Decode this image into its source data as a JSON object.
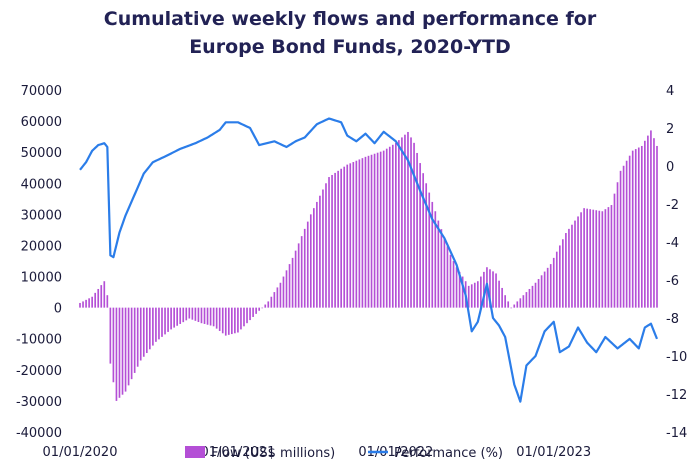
{
  "chart_data": {
    "type": "bar+line",
    "title_line1": "Cumulative weekly flows and performance for",
    "title_line2": "Europe Bond Funds, 2020-YTD",
    "y_left": {
      "ticks": [
        "70000",
        "60000",
        "50000",
        "40000",
        "30000",
        "20000",
        "10000",
        "0",
        "-10000",
        "-20000",
        "-30000",
        "-40000"
      ],
      "range": [
        -40000,
        70000
      ]
    },
    "y_right": {
      "ticks": [
        "4",
        "2",
        "0",
        "-2",
        "-4",
        "-6",
        "-8",
        "-10",
        "-12",
        "-14"
      ],
      "range": [
        -14,
        4
      ]
    },
    "x_ticks": [
      {
        "label": "01/01/2020",
        "week": 0
      },
      {
        "label": "01/01/2021",
        "week": 52
      },
      {
        "label": "01/01/2022",
        "week": 104
      },
      {
        "label": "01/01/2023",
        "week": 156
      }
    ],
    "weeks": 190,
    "colors": {
      "flow": "#b44fd6",
      "performance": "#2b7de9",
      "text": "#1a1a3a",
      "title": "#222255"
    },
    "series": [
      {
        "name": "Flow (US$ millions)",
        "kind": "bar",
        "axis": "left",
        "anchors": [
          [
            0,
            1500
          ],
          [
            4,
            3500
          ],
          [
            8,
            8500
          ],
          [
            9,
            4000
          ],
          [
            10,
            -18000
          ],
          [
            12,
            -30000
          ],
          [
            15,
            -27000
          ],
          [
            20,
            -17000
          ],
          [
            25,
            -11000
          ],
          [
            30,
            -7000
          ],
          [
            36,
            -3500
          ],
          [
            40,
            -5000
          ],
          [
            44,
            -6000
          ],
          [
            48,
            -9000
          ],
          [
            52,
            -8000
          ],
          [
            55,
            -5000
          ],
          [
            58,
            -2000
          ],
          [
            62,
            2000
          ],
          [
            66,
            8000
          ],
          [
            70,
            16000
          ],
          [
            76,
            30000
          ],
          [
            82,
            42000
          ],
          [
            88,
            46000
          ],
          [
            94,
            48500
          ],
          [
            100,
            50500
          ],
          [
            104,
            53000
          ],
          [
            108,
            56500
          ],
          [
            110,
            53000
          ],
          [
            114,
            40000
          ],
          [
            118,
            28000
          ],
          [
            122,
            17000
          ],
          [
            124,
            13000
          ],
          [
            126,
            10000
          ],
          [
            128,
            7000
          ],
          [
            131,
            8500
          ],
          [
            134,
            13000
          ],
          [
            137,
            11000
          ],
          [
            140,
            4000
          ],
          [
            142,
            0
          ],
          [
            145,
            3000
          ],
          [
            150,
            8000
          ],
          [
            155,
            14000
          ],
          [
            160,
            24000
          ],
          [
            166,
            32000
          ],
          [
            172,
            31000
          ],
          [
            175,
            33000
          ],
          [
            178,
            44000
          ],
          [
            182,
            50500
          ],
          [
            185,
            52000
          ],
          [
            188,
            57000
          ],
          [
            190,
            52000
          ]
        ]
      },
      {
        "name": "Performance (%)",
        "kind": "line",
        "axis": "right",
        "anchors": [
          [
            0,
            -0.2
          ],
          [
            2,
            0.2
          ],
          [
            4,
            0.8
          ],
          [
            6,
            1.1
          ],
          [
            8,
            1.2
          ],
          [
            9,
            1.0
          ],
          [
            10,
            -4.7
          ],
          [
            11,
            -4.8
          ],
          [
            13,
            -3.5
          ],
          [
            15,
            -2.6
          ],
          [
            18,
            -1.5
          ],
          [
            21,
            -0.4
          ],
          [
            24,
            0.2
          ],
          [
            28,
            0.5
          ],
          [
            33,
            0.9
          ],
          [
            38,
            1.2
          ],
          [
            42,
            1.5
          ],
          [
            46,
            1.9
          ],
          [
            48,
            2.3
          ],
          [
            52,
            2.3
          ],
          [
            56,
            2.0
          ],
          [
            59,
            1.1
          ],
          [
            64,
            1.3
          ],
          [
            68,
            1.0
          ],
          [
            71,
            1.3
          ],
          [
            74,
            1.5
          ],
          [
            78,
            2.2
          ],
          [
            82,
            2.5
          ],
          [
            86,
            2.3
          ],
          [
            88,
            1.6
          ],
          [
            91,
            1.3
          ],
          [
            94,
            1.7
          ],
          [
            97,
            1.2
          ],
          [
            100,
            1.8
          ],
          [
            104,
            1.3
          ],
          [
            108,
            0.3
          ],
          [
            112,
            -1.3
          ],
          [
            116,
            -2.8
          ],
          [
            120,
            -3.8
          ],
          [
            124,
            -5.2
          ],
          [
            127,
            -6.8
          ],
          [
            129,
            -8.7
          ],
          [
            131,
            -8.2
          ],
          [
            134,
            -6.2
          ],
          [
            136,
            -8.0
          ],
          [
            138,
            -8.4
          ],
          [
            140,
            -9.0
          ],
          [
            143,
            -11.5
          ],
          [
            145,
            -12.4
          ],
          [
            147,
            -10.5
          ],
          [
            150,
            -10.0
          ],
          [
            153,
            -8.7
          ],
          [
            156,
            -8.2
          ],
          [
            158,
            -9.8
          ],
          [
            161,
            -9.5
          ],
          [
            164,
            -8.5
          ],
          [
            167,
            -9.3
          ],
          [
            170,
            -9.8
          ],
          [
            173,
            -9.0
          ],
          [
            177,
            -9.6
          ],
          [
            181,
            -9.1
          ],
          [
            184,
            -9.6
          ],
          [
            186,
            -8.5
          ],
          [
            188,
            -8.3
          ],
          [
            190,
            -9.1
          ]
        ]
      }
    ]
  }
}
